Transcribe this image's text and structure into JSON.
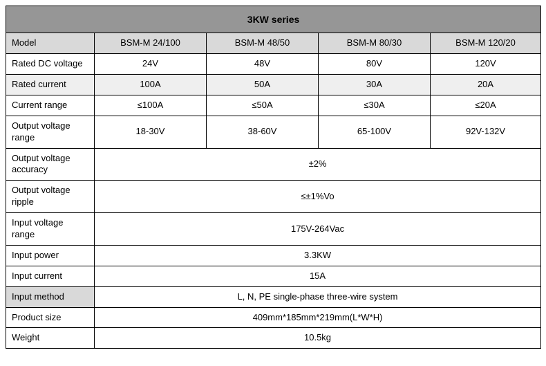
{
  "title": "3KW series",
  "header": {
    "label": "Model",
    "cols": [
      "BSM-M 24/100",
      "BSM-M 48/50",
      "BSM-M 80/30",
      "BSM-M 120/20"
    ]
  },
  "rows": [
    {
      "label": "Rated DC voltage",
      "vals": [
        "24V",
        "48V",
        "80V",
        "120V"
      ],
      "shaded": false
    },
    {
      "label": "Rated current",
      "vals": [
        "100A",
        "50A",
        "30A",
        "20A"
      ],
      "shaded": true
    },
    {
      "label": "Current range",
      "vals": [
        "≤100A",
        "≤50A",
        "≤30A",
        "≤20A"
      ],
      "shaded": false
    },
    {
      "label": "Output voltage range",
      "vals": [
        "18-30V",
        "38-60V",
        "65-100V",
        "92V-132V"
      ],
      "shaded": false
    },
    {
      "label": "Output voltage accuracy",
      "merged": "±2%",
      "shaded": false
    },
    {
      "label": "Output voltage ripple",
      "merged": "≤±1%Vo",
      "shaded": false
    },
    {
      "label": "Input voltage range",
      "merged": "175V-264Vac",
      "shaded": false
    },
    {
      "label": "Input power",
      "merged": "3.3KW",
      "shaded": false
    },
    {
      "label": "Input current",
      "merged": "15A",
      "shaded": false
    },
    {
      "label": "Input method",
      "merged": "L, N, PE single-phase three-wire system",
      "shaded": false,
      "labelShaded": true
    },
    {
      "label": "Product size",
      "merged": "409mm*185mm*219mm(L*W*H)",
      "shaded": false
    },
    {
      "label": "Weight",
      "merged": "10.5kg",
      "shaded": false
    }
  ],
  "colors": {
    "titleBg": "#969696",
    "headerBg": "#d9d9d9",
    "shadedBg": "#efefef",
    "border": "#000000",
    "text": "#000000"
  }
}
